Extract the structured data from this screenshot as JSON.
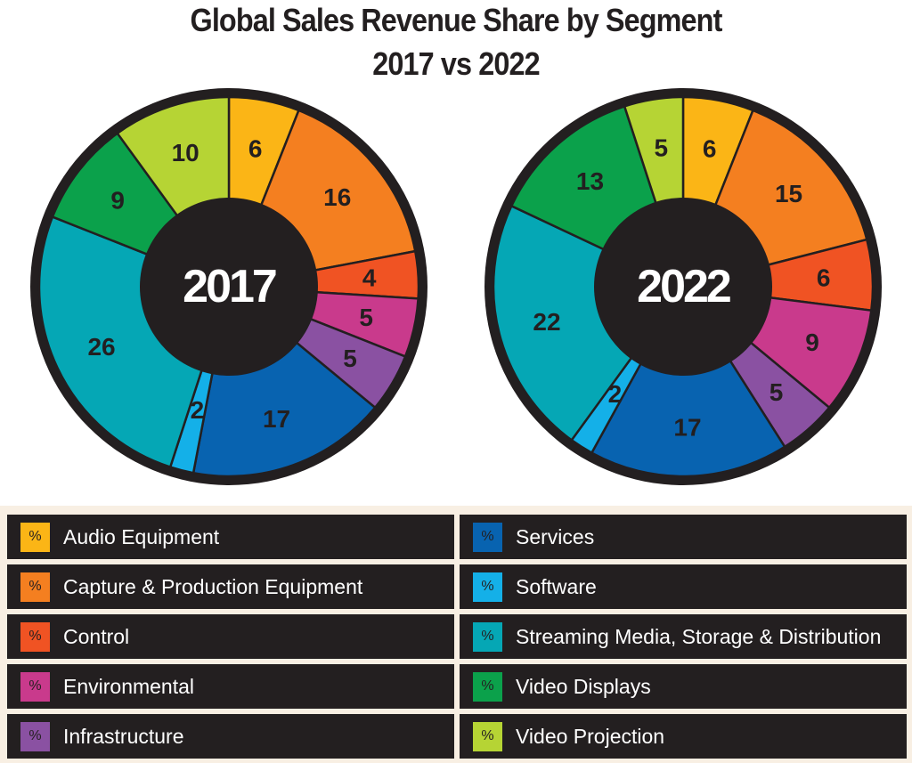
{
  "title": {
    "line1": "Global Sales Revenue Share by Segment",
    "line2": "2017 vs 2022"
  },
  "legend": {
    "symbol": "%",
    "items": [
      {
        "label": "Audio Equipment",
        "color": "#fbb516"
      },
      {
        "label": "Capture & Production Equipment",
        "color": "#f47f20"
      },
      {
        "label": "Control",
        "color": "#f05323"
      },
      {
        "label": "Environmental",
        "color": "#c93a8c"
      },
      {
        "label": "Infrastructure",
        "color": "#8a51a2"
      },
      {
        "label": "Services",
        "color": "#0863b0"
      },
      {
        "label": "Software",
        "color": "#14b0e8"
      },
      {
        "label": "Streaming Media, Storage & Distribution",
        "color": "#05a7b5"
      },
      {
        "label": "Video Displays",
        "color": "#0ba14b"
      },
      {
        "label": "Video Projection",
        "color": "#b6d434"
      }
    ]
  },
  "chart_data": [
    {
      "type": "pie",
      "center_label": "2017",
      "unit": "%",
      "categories": [
        "Audio Equipment",
        "Capture & Production Equipment",
        "Control",
        "Environmental",
        "Infrastructure",
        "Services",
        "Software",
        "Streaming Media, Storage & Distribution",
        "Video Displays",
        "Video Projection"
      ],
      "values": [
        6,
        16,
        4,
        5,
        5,
        17,
        2,
        26,
        9,
        10
      ],
      "colors": [
        "#fbb516",
        "#f47f20",
        "#f05323",
        "#c93a8c",
        "#8a51a2",
        "#0863b0",
        "#14b0e8",
        "#05a7b5",
        "#0ba14b",
        "#b6d434"
      ],
      "donut": true
    },
    {
      "type": "pie",
      "center_label": "2022",
      "unit": "%",
      "categories": [
        "Audio Equipment",
        "Capture & Production Equipment",
        "Control",
        "Environmental",
        "Infrastructure",
        "Services",
        "Software",
        "Streaming Media, Storage & Distribution",
        "Video Displays",
        "Video Projection"
      ],
      "values": [
        6,
        15,
        6,
        9,
        5,
        17,
        2,
        22,
        13,
        5
      ],
      "colors": [
        "#fbb516",
        "#f47f20",
        "#f05323",
        "#c93a8c",
        "#8a51a2",
        "#0863b0",
        "#14b0e8",
        "#05a7b5",
        "#0ba14b",
        "#b6d434"
      ],
      "donut": true
    }
  ]
}
